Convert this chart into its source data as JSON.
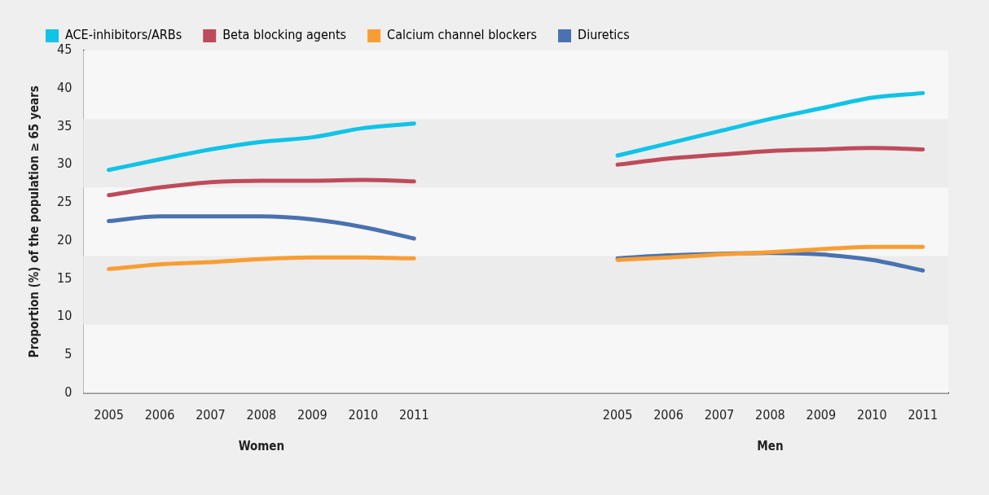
{
  "chart_data": {
    "type": "line",
    "ylabel": "Proportion (%) of the population ≥ 65 years",
    "categories": [
      "2005",
      "2006",
      "2007",
      "2008",
      "2009",
      "2010",
      "2011",
      null,
      null,
      null,
      "2005",
      "2006",
      "2007",
      "2008",
      "2009",
      "2010",
      "2011"
    ],
    "series": [
      {
        "name": "ACE-inhibitors/ARBs",
        "color": "#10c3e8",
        "values": [
          29.3,
          30.7,
          32.0,
          33.0,
          33.6,
          34.8,
          35.4,
          null,
          null,
          null,
          31.2,
          32.8,
          34.4,
          36.0,
          37.4,
          38.8,
          39.4
        ]
      },
      {
        "name": "Beta blocking agents",
        "color": "#be4b5b",
        "values": [
          26.0,
          27.0,
          27.7,
          27.9,
          27.9,
          28.0,
          27.8,
          null,
          null,
          null,
          30.0,
          30.8,
          31.3,
          31.8,
          32.0,
          32.2,
          32.0
        ]
      },
      {
        "name": "Calcium channel blockers",
        "color": "#f99d33",
        "values": [
          16.3,
          16.9,
          17.2,
          17.6,
          17.8,
          17.8,
          17.7,
          null,
          null,
          null,
          17.5,
          17.8,
          18.2,
          18.5,
          18.9,
          19.2,
          19.2
        ]
      },
      {
        "name": "Diuretics",
        "color": "#4a72b0",
        "values": [
          22.6,
          23.2,
          23.2,
          23.2,
          22.8,
          21.8,
          20.3,
          null,
          null,
          null,
          17.7,
          18.1,
          18.3,
          18.4,
          18.2,
          17.5,
          16.1
        ]
      }
    ],
    "ylim": [
      0,
      45
    ],
    "yticks": [
      0,
      5,
      10,
      15,
      20,
      25,
      30,
      35,
      40,
      45
    ],
    "bands": [
      {
        "axis": "y",
        "from": 9,
        "to": 18,
        "color": "#ececec"
      },
      {
        "axis": "y",
        "from": 27,
        "to": 36,
        "color": "#ececec"
      }
    ],
    "annotations": [
      "Women",
      "Men"
    ],
    "legend": "top left",
    "marker": "none",
    "line_style": "solid"
  }
}
